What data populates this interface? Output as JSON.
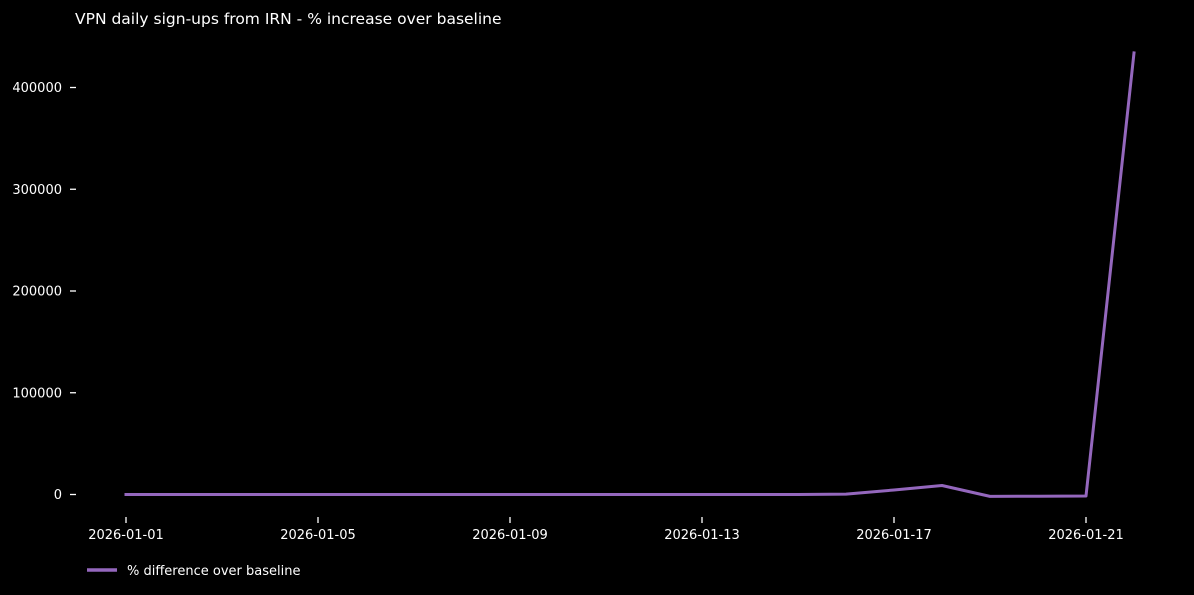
{
  "title": "VPN daily sign-ups from IRN - % increase over baseline",
  "legend": {
    "label": "% difference over baseline"
  },
  "colors": {
    "background": "#000000",
    "text": "#ffffff",
    "line": "#9467bd"
  },
  "chart_data": {
    "type": "line",
    "title": "VPN daily sign-ups from IRN - % increase over baseline",
    "xlabel": "",
    "ylabel": "",
    "grid": false,
    "legend_position": "lower-left-outside",
    "x": [
      "2026-01-01",
      "2026-01-02",
      "2026-01-03",
      "2026-01-04",
      "2026-01-05",
      "2026-01-06",
      "2026-01-07",
      "2026-01-08",
      "2026-01-09",
      "2026-01-10",
      "2026-01-11",
      "2026-01-12",
      "2026-01-13",
      "2026-01-14",
      "2026-01-15",
      "2026-01-16",
      "2026-01-17",
      "2026-01-18",
      "2026-01-19",
      "2026-01-20",
      "2026-01-21",
      "2026-01-22"
    ],
    "series": [
      {
        "name": "% difference over baseline",
        "values": [
          0,
          0,
          0,
          0,
          0,
          0,
          0,
          0,
          0,
          0,
          0,
          0,
          0,
          0,
          0,
          400,
          4400,
          8800,
          -1900,
          -1700,
          -1500,
          434000
        ]
      }
    ],
    "y_ticks": [
      0,
      100000,
      200000,
      300000,
      400000
    ],
    "y_tick_labels": [
      "0",
      "100000",
      "200000",
      "300000",
      "400000"
    ],
    "x_tick_indices": [
      0,
      4,
      8,
      12,
      16,
      20
    ],
    "x_tick_labels": [
      "2026-01-01",
      "2026-01-05",
      "2026-01-09",
      "2026-01-13",
      "2026-01-17",
      "2026-01-21"
    ],
    "ylim": [
      -25000,
      460000
    ]
  }
}
